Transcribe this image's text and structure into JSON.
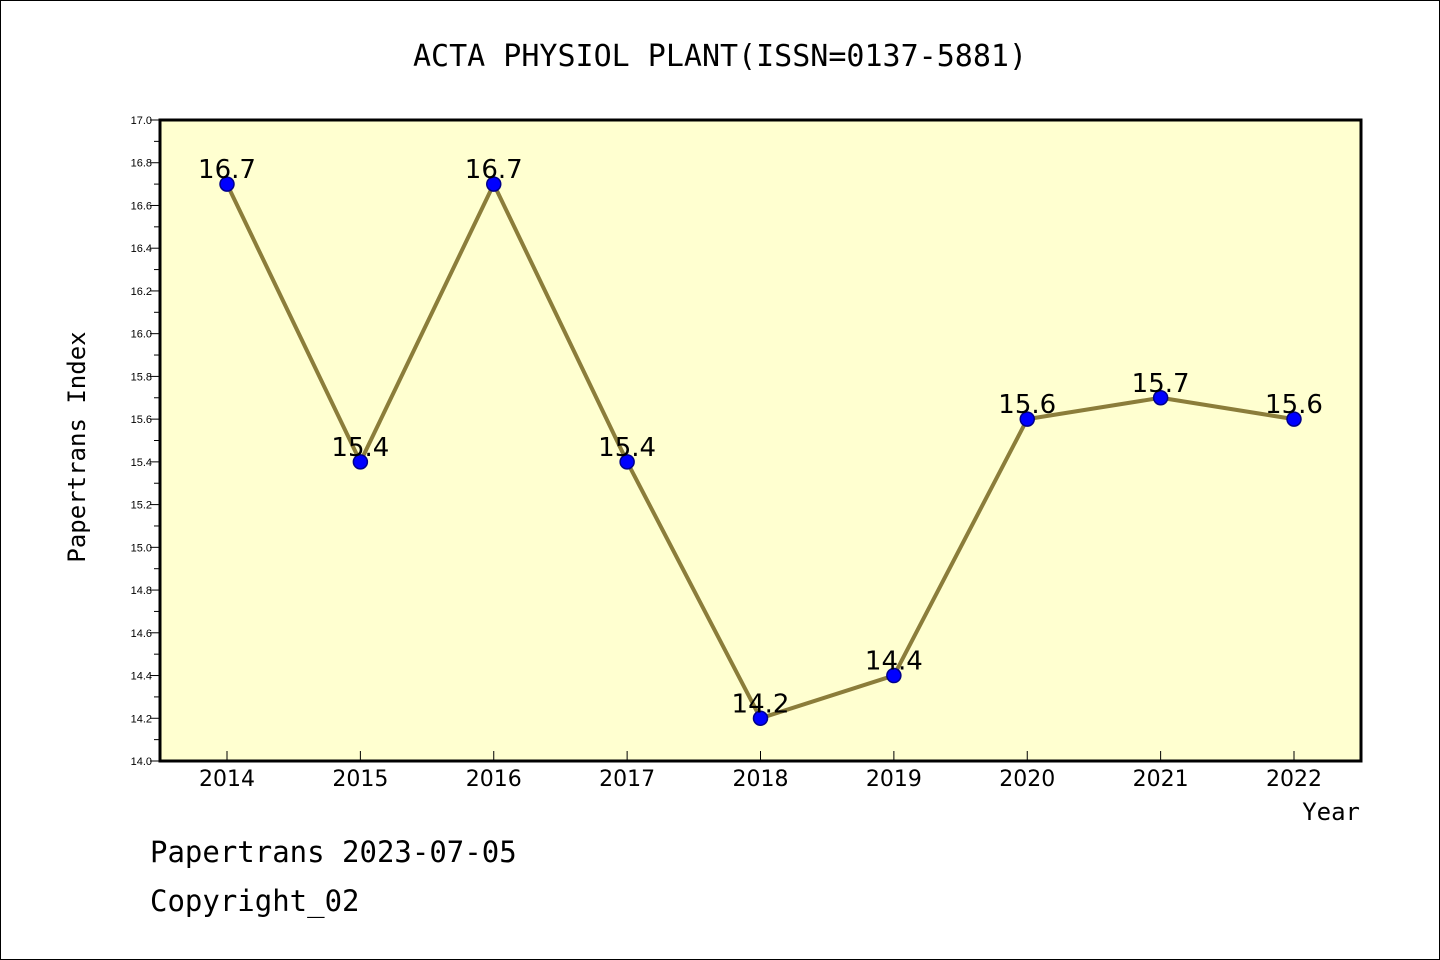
{
  "chart_data": {
    "type": "line",
    "title": "ACTA PHYSIOL PLANT(ISSN=0137-5881)",
    "xlabel": "Year",
    "ylabel": "Papertrans Index",
    "categories": [
      "2014",
      "2015",
      "2016",
      "2017",
      "2018",
      "2019",
      "2020",
      "2021",
      "2022"
    ],
    "series": [
      {
        "values": [
          16.7,
          15.4,
          16.7,
          15.4,
          14.2,
          14.4,
          15.6,
          15.7,
          15.6
        ],
        "labels": [
          "16.7",
          "15.4",
          "16.7",
          "15.4",
          "14.2",
          "14.4",
          "15.6",
          "15.7",
          "15.6"
        ]
      }
    ],
    "ylim": [
      14.0,
      17.0
    ],
    "yticks": [
      "14.0",
      "14.2",
      "14.4",
      "14.6",
      "14.8",
      "15.0",
      "15.2",
      "15.4",
      "15.6",
      "15.8",
      "16.0",
      "16.2",
      "16.4",
      "16.6",
      "16.8",
      "17.0"
    ],
    "grid": false,
    "legend": "none",
    "colors": {
      "plot_background": "#ffffd0",
      "line": "#8b7d3a",
      "marker": "#0000ff",
      "marker_edge": "#00008b",
      "axis": "#000000"
    }
  },
  "footer": {
    "date_text": "Papertrans 2023-07-05",
    "copyright_text": "Copyright_02"
  }
}
